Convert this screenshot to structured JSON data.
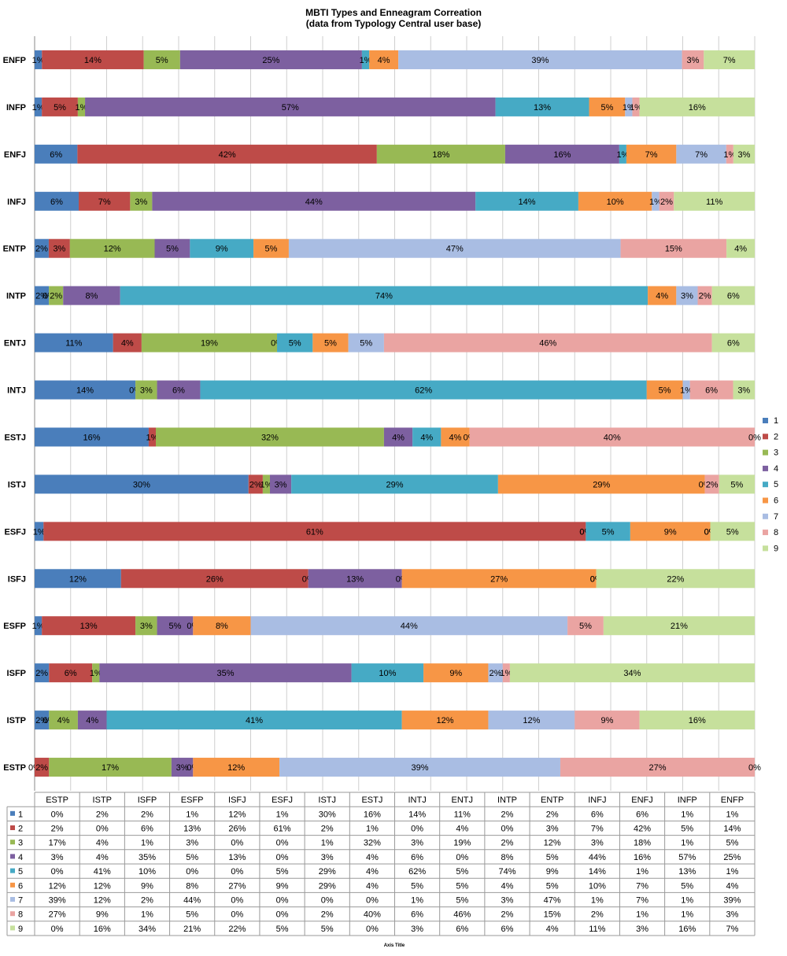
{
  "chart_data": {
    "type": "bar",
    "orientation": "horizontal",
    "stacked": "percent",
    "title": "MBTI Types and Enneagram Correation",
    "subtitle": "(data from Typology Central user base)",
    "xlabel": "Axis Title",
    "xlim": [
      0,
      100
    ],
    "grid": true,
    "legend_position": "right",
    "categories": [
      "ESTP",
      "ISTP",
      "ISFP",
      "ESFP",
      "ISFJ",
      "ESFJ",
      "ISTJ",
      "ESTJ",
      "INTJ",
      "ENTJ",
      "INTP",
      "ENTP",
      "INFJ",
      "ENFJ",
      "INFP",
      "ENFP"
    ],
    "series": [
      {
        "name": "1",
        "color": "#4a7ebb",
        "values": [
          0,
          2,
          2,
          1,
          12,
          1,
          30,
          16,
          14,
          11,
          2,
          2,
          6,
          6,
          1,
          1
        ]
      },
      {
        "name": "2",
        "color": "#be4b48",
        "values": [
          2,
          0,
          6,
          13,
          26,
          61,
          2,
          1,
          0,
          4,
          0,
          3,
          7,
          42,
          5,
          14
        ]
      },
      {
        "name": "3",
        "color": "#98b954",
        "values": [
          17,
          4,
          1,
          3,
          0,
          0,
          1,
          32,
          3,
          19,
          2,
          12,
          3,
          18,
          1,
          5
        ]
      },
      {
        "name": "4",
        "color": "#7d60a0",
        "values": [
          3,
          4,
          35,
          5,
          13,
          0,
          3,
          4,
          6,
          0,
          8,
          5,
          44,
          16,
          57,
          25
        ]
      },
      {
        "name": "5",
        "color": "#46aac5",
        "values": [
          0,
          41,
          10,
          0,
          0,
          5,
          29,
          4,
          62,
          5,
          74,
          9,
          14,
          1,
          13,
          1
        ]
      },
      {
        "name": "6",
        "color": "#f79646",
        "values": [
          12,
          12,
          9,
          8,
          27,
          9,
          29,
          4,
          5,
          5,
          4,
          5,
          10,
          7,
          5,
          4
        ]
      },
      {
        "name": "7",
        "color": "#a9bde3",
        "values": [
          39,
          12,
          2,
          44,
          0,
          0,
          0,
          0,
          1,
          5,
          3,
          47,
          1,
          7,
          1,
          39
        ]
      },
      {
        "name": "8",
        "color": "#eaa4a2",
        "values": [
          27,
          9,
          1,
          5,
          0,
          0,
          2,
          40,
          6,
          46,
          2,
          15,
          2,
          1,
          1,
          3
        ]
      },
      {
        "name": "9",
        "color": "#c6e09c",
        "values": [
          0,
          16,
          34,
          21,
          22,
          5,
          5,
          0,
          3,
          6,
          6,
          4,
          11,
          3,
          16,
          7
        ]
      }
    ]
  }
}
